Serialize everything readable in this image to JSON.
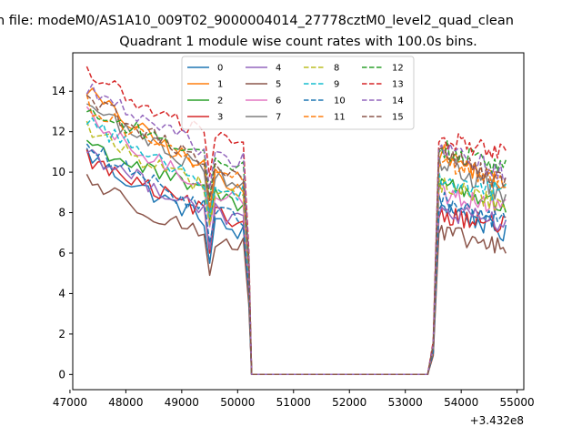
{
  "figure": {
    "suptitle": "n file: modeM0/AS1A10_009T02_9000004014_27778cztM0_level2_quad_clean",
    "title": "Quadrant 1 module wise count rates with 100.0s bins."
  },
  "chart_data": {
    "type": "line",
    "title": "Quadrant 1 module wise count rates with 100.0s bins.",
    "xlabel": "",
    "ylabel": "",
    "x_offset_label": "+3.432e8",
    "xlim": [
      47050,
      55120
    ],
    "ylim": [
      -0.75,
      15.9
    ],
    "xticks": [
      47000,
      48000,
      49000,
      50000,
      51000,
      52000,
      53000,
      54000,
      55000
    ],
    "xtick_labels": [
      "47000",
      "48000",
      "49000",
      "50000",
      "51000",
      "52000",
      "53000",
      "54000",
      "55000"
    ],
    "yticks": [
      0,
      2,
      4,
      6,
      8,
      10,
      12,
      14
    ],
    "ytick_labels": [
      "0",
      "2",
      "4",
      "6",
      "8",
      "10",
      "12",
      "14"
    ],
    "grid": false,
    "legend_position": "top-center",
    "legend_columns": 4,
    "segments_x": {
      "seg1": [
        47300,
        50000
      ],
      "seg2": [
        50100,
        50200
      ],
      "zero": [
        50200,
        53400
      ],
      "rise": [
        53400,
        53500
      ],
      "seg3": [
        53600,
        54800
      ]
    },
    "series": [
      {
        "name": "0",
        "color": "#1f77b4",
        "dash": "solid",
        "start": 11.0,
        "end1": 7.0,
        "end3": 6.9,
        "rise3": 8.5,
        "dip": 5.5
      },
      {
        "name": "1",
        "color": "#ff7f0e",
        "dash": "solid",
        "start": 14.2,
        "end1": 9.3,
        "end3": 9.3,
        "rise3": 11.0,
        "dip": 8.0
      },
      {
        "name": "2",
        "color": "#2ca02c",
        "dash": "solid",
        "start": 11.6,
        "end1": 8.5,
        "end3": 8.2,
        "rise3": 9.6,
        "dip": 7.5
      },
      {
        "name": "3",
        "color": "#d62728",
        "dash": "solid",
        "start": 10.8,
        "end1": 7.5,
        "end3": 7.3,
        "rise3": 8.0,
        "dip": 6.0
      },
      {
        "name": "4",
        "color": "#9467bd",
        "dash": "solid",
        "start": 11.2,
        "end1": 7.6,
        "end3": 7.5,
        "rise3": 8.0,
        "dip": 6.2
      },
      {
        "name": "5",
        "color": "#8c564b",
        "dash": "solid",
        "start": 9.8,
        "end1": 6.3,
        "end3": 6.2,
        "rise3": 7.0,
        "dip": 4.9
      },
      {
        "name": "6",
        "color": "#e377c2",
        "dash": "solid",
        "start": 12.8,
        "end1": 8.6,
        "end3": 8.2,
        "rise3": 9.0,
        "dip": 7.3
      },
      {
        "name": "7",
        "color": "#7f7f7f",
        "dash": "solid",
        "start": 13.5,
        "end1": 9.5,
        "end3": 8.8,
        "rise3": 10.6,
        "dip": 8.0
      },
      {
        "name": "8",
        "color": "#bcbd22",
        "dash": "dashed",
        "start": 12.3,
        "end1": 8.7,
        "end3": 8.4,
        "rise3": 9.4,
        "dip": 7.4
      },
      {
        "name": "9",
        "color": "#17becf",
        "dash": "dashed",
        "start": 12.7,
        "end1": 9.0,
        "end3": 9.0,
        "rise3": 9.6,
        "dip": 7.8
      },
      {
        "name": "10",
        "color": "#1f77b4",
        "dash": "dashed",
        "start": 11.4,
        "end1": 7.6,
        "end3": 7.5,
        "rise3": 8.6,
        "dip": 6.5
      },
      {
        "name": "11",
        "color": "#ff7f0e",
        "dash": "dashed",
        "start": 13.5,
        "end1": 9.6,
        "end3": 9.5,
        "rise3": 10.6,
        "dip": 8.2
      },
      {
        "name": "12",
        "color": "#2ca02c",
        "dash": "dashed",
        "start": 13.2,
        "end1": 10.4,
        "end3": 10.2,
        "rise3": 11.2,
        "dip": 8.7
      },
      {
        "name": "13",
        "color": "#d62728",
        "dash": "dashed",
        "start": 15.1,
        "end1": 11.2,
        "end3": 11.0,
        "rise3": 11.6,
        "dip": 9.8
      },
      {
        "name": "14",
        "color": "#9467bd",
        "dash": "dashed",
        "start": 14.3,
        "end1": 10.5,
        "end3": 10.0,
        "rise3": 11.2,
        "dip": 9.2
      },
      {
        "name": "15",
        "color": "#8c564b",
        "dash": "dashed",
        "start": 13.9,
        "end1": 9.8,
        "end3": 9.4,
        "rise3": 11.0,
        "dip": 8.6
      }
    ]
  }
}
